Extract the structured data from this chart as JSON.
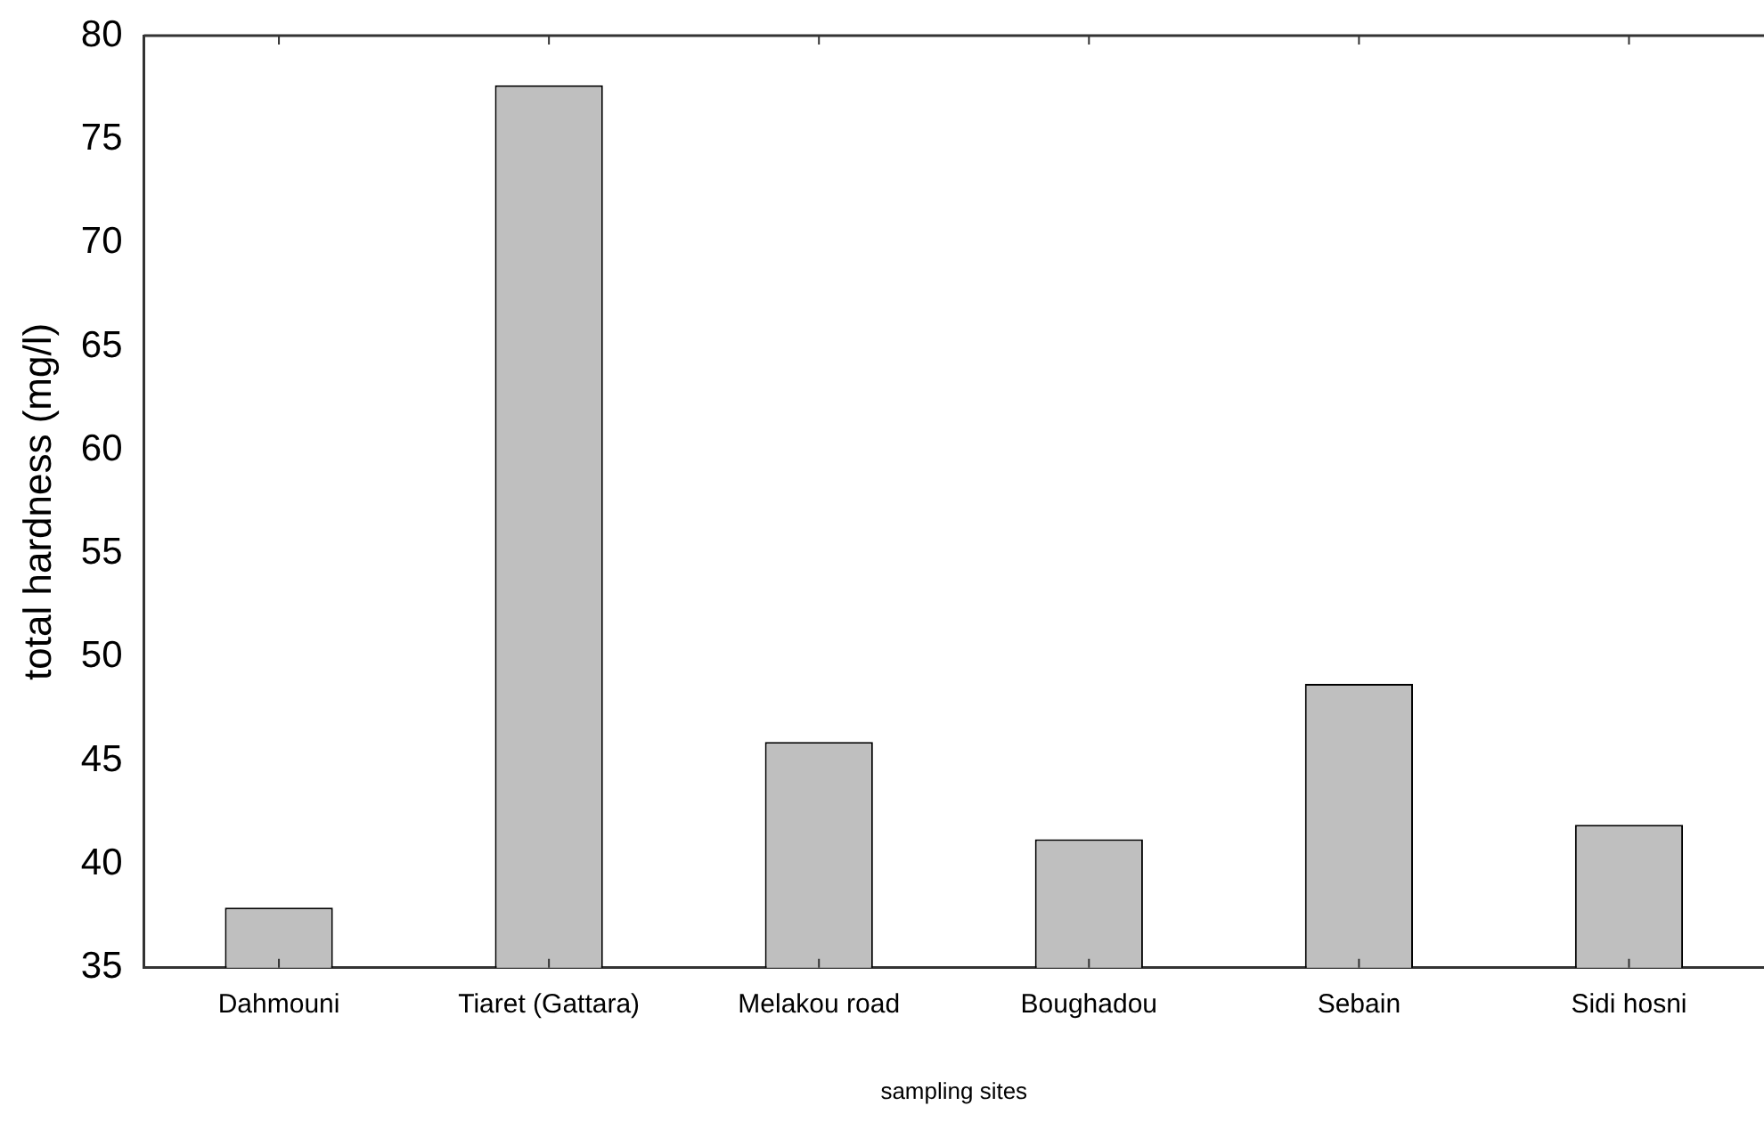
{
  "chart_data": {
    "type": "bar",
    "xlabel": "sampling sites",
    "ylabel": "total hardness (mg/l)",
    "categories": [
      "Dahmouni",
      "Tiaret (Gattara)",
      "Melakou road",
      "Boughadou",
      "Sebain",
      "Sidi hosni"
    ],
    "values": [
      37.9,
      77.6,
      45.9,
      41.2,
      48.7,
      41.9
    ],
    "color": "#bfbfbf",
    "ylim": [
      35,
      80
    ],
    "yticks": [
      35,
      40,
      45,
      50,
      55,
      60,
      65,
      70,
      75,
      80
    ],
    "grid": false,
    "legend": false
  }
}
